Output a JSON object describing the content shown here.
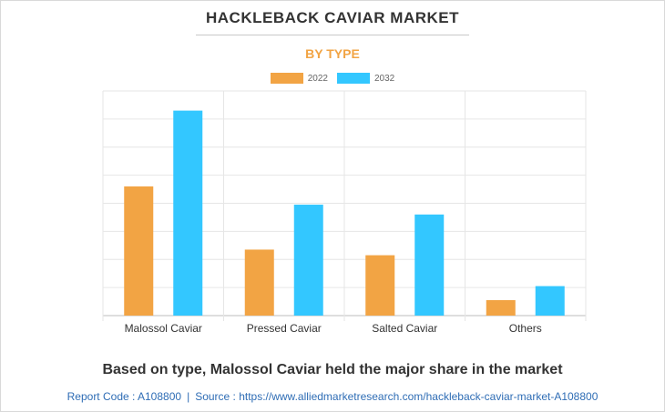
{
  "header": {
    "title": "HACKLEBACK CAVIAR MARKET",
    "subtitle": "BY TYPE"
  },
  "chart_data": {
    "type": "bar",
    "categories": [
      "Malossol Caviar",
      "Pressed Caviar",
      "Salted Caviar",
      "Others"
    ],
    "series": [
      {
        "name": "2022",
        "color": "#f2a444",
        "values": [
          46,
          23.5,
          21.5,
          5.5
        ]
      },
      {
        "name": "2032",
        "color": "#33c7ff",
        "values": [
          73,
          39.5,
          36,
          10.5
        ]
      }
    ],
    "ylim": [
      0,
      80
    ],
    "y_gridlines": 8,
    "y_tick_labels_shown": false,
    "grid": true,
    "legend_position": "top-center"
  },
  "footer": {
    "caption": "Based on type, Malossol Caviar held the major share in the market",
    "report_code": "Report Code : A108800",
    "separator": "|",
    "source": "Source : https://www.alliedmarketresearch.com/hackleback-caviar-market-A108800"
  }
}
